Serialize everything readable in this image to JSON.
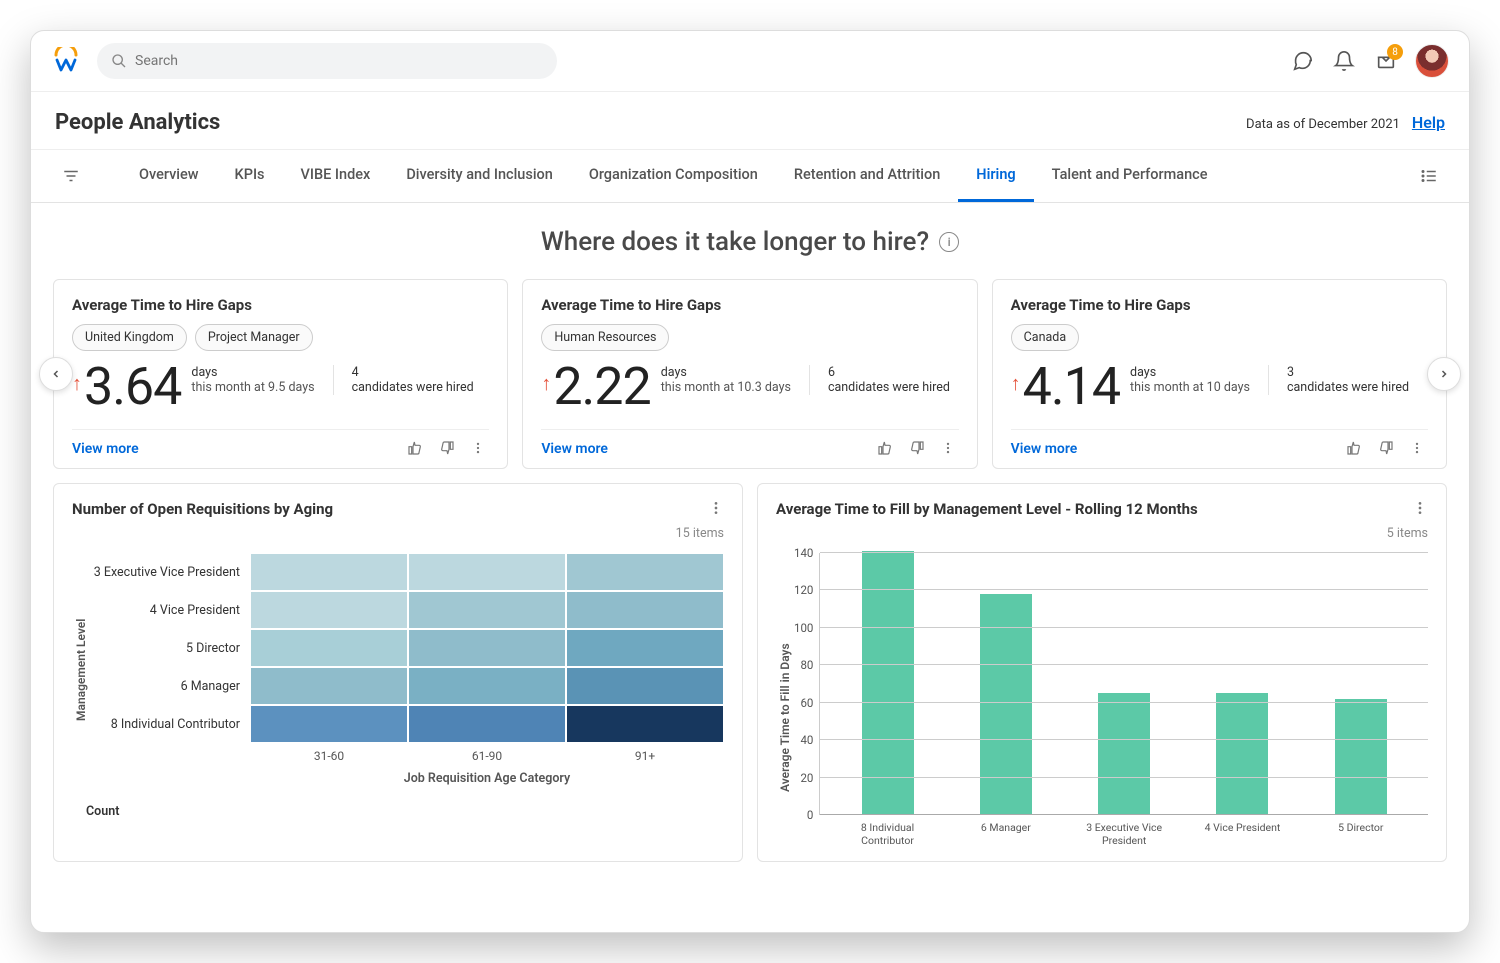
{
  "header": {
    "search_placeholder": "Search",
    "inbox_badge": "8"
  },
  "page": {
    "title": "People Analytics",
    "data_asof": "Data as of December 2021",
    "help_label": "Help"
  },
  "tabs": {
    "items": [
      {
        "label": "Overview",
        "active": false
      },
      {
        "label": "KPIs",
        "active": false
      },
      {
        "label": "VIBE Index",
        "active": false
      },
      {
        "label": "Diversity and Inclusion",
        "active": false
      },
      {
        "label": "Organization Composition",
        "active": false
      },
      {
        "label": "Retention and Attrition",
        "active": false
      },
      {
        "label": "Hiring",
        "active": true
      },
      {
        "label": "Talent and Performance",
        "active": false
      }
    ]
  },
  "section": {
    "heading": "Where does it take longer to hire?"
  },
  "kpi_cards": [
    {
      "title": "Average Time to Hire Gaps",
      "chips": [
        "United Kingdom",
        "Project Manager"
      ],
      "value": "3.64",
      "trend": "up",
      "sub1_l1": "days",
      "sub1_l2": "this month at 9.5 days",
      "sub2_l1": "4",
      "sub2_l2": "candidates were hired",
      "view_more": "View more"
    },
    {
      "title": "Average Time to Hire Gaps",
      "chips": [
        "Human Resources"
      ],
      "value": "2.22",
      "trend": "up",
      "sub1_l1": "days",
      "sub1_l2": "this month at 10.3 days",
      "sub2_l1": "6",
      "sub2_l2": "candidates were hired",
      "view_more": "View more"
    },
    {
      "title": "Average Time to Hire Gaps",
      "chips": [
        "Canada"
      ],
      "value": "4.14",
      "trend": "up",
      "sub1_l1": "days",
      "sub1_l2": "this month at 10 days",
      "sub2_l1": "3",
      "sub2_l2": "candidates were hired",
      "view_more": "View more"
    }
  ],
  "heatmap_panel": {
    "title": "Number of Open Requisitions by Aging",
    "items_label": "15 items",
    "ylabel": "Management Level",
    "xlabel": "Job Requisition Age Category",
    "count_label": "Count",
    "y_categories": [
      "3 Executive Vice President",
      "4 Vice President",
      "5 Director",
      "6 Manager",
      "8 Individual Contributor"
    ],
    "x_categories": [
      "31-60",
      "61-90",
      "91+"
    ],
    "cell_colors": [
      [
        "#bcd8df",
        "#bcd8df",
        "#a0c7d2"
      ],
      [
        "#bcd8df",
        "#a0c7d2",
        "#8fbccb"
      ],
      [
        "#a8cfd7",
        "#8fbccb",
        "#6fa8c0"
      ],
      [
        "#8fbccb",
        "#7ab0c4",
        "#5a93b5"
      ],
      [
        "#5c91bf",
        "#4f84b5",
        "#17375e"
      ]
    ]
  },
  "barchart_panel": {
    "title": "Average Time to Fill by Management Level - Rolling 12 Months",
    "items_label": "5 items",
    "ylabel": "Average Time to Fill in Days",
    "ylim": [
      0,
      140
    ],
    "ytick_step": 20,
    "bar_color": "#5cc9a7",
    "categories": [
      "8 Individual Contributor",
      "6 Manager",
      "3 Executive Vice President",
      "4 Vice President",
      "5 Director"
    ],
    "values": [
      141,
      118,
      65,
      65,
      62
    ]
  }
}
